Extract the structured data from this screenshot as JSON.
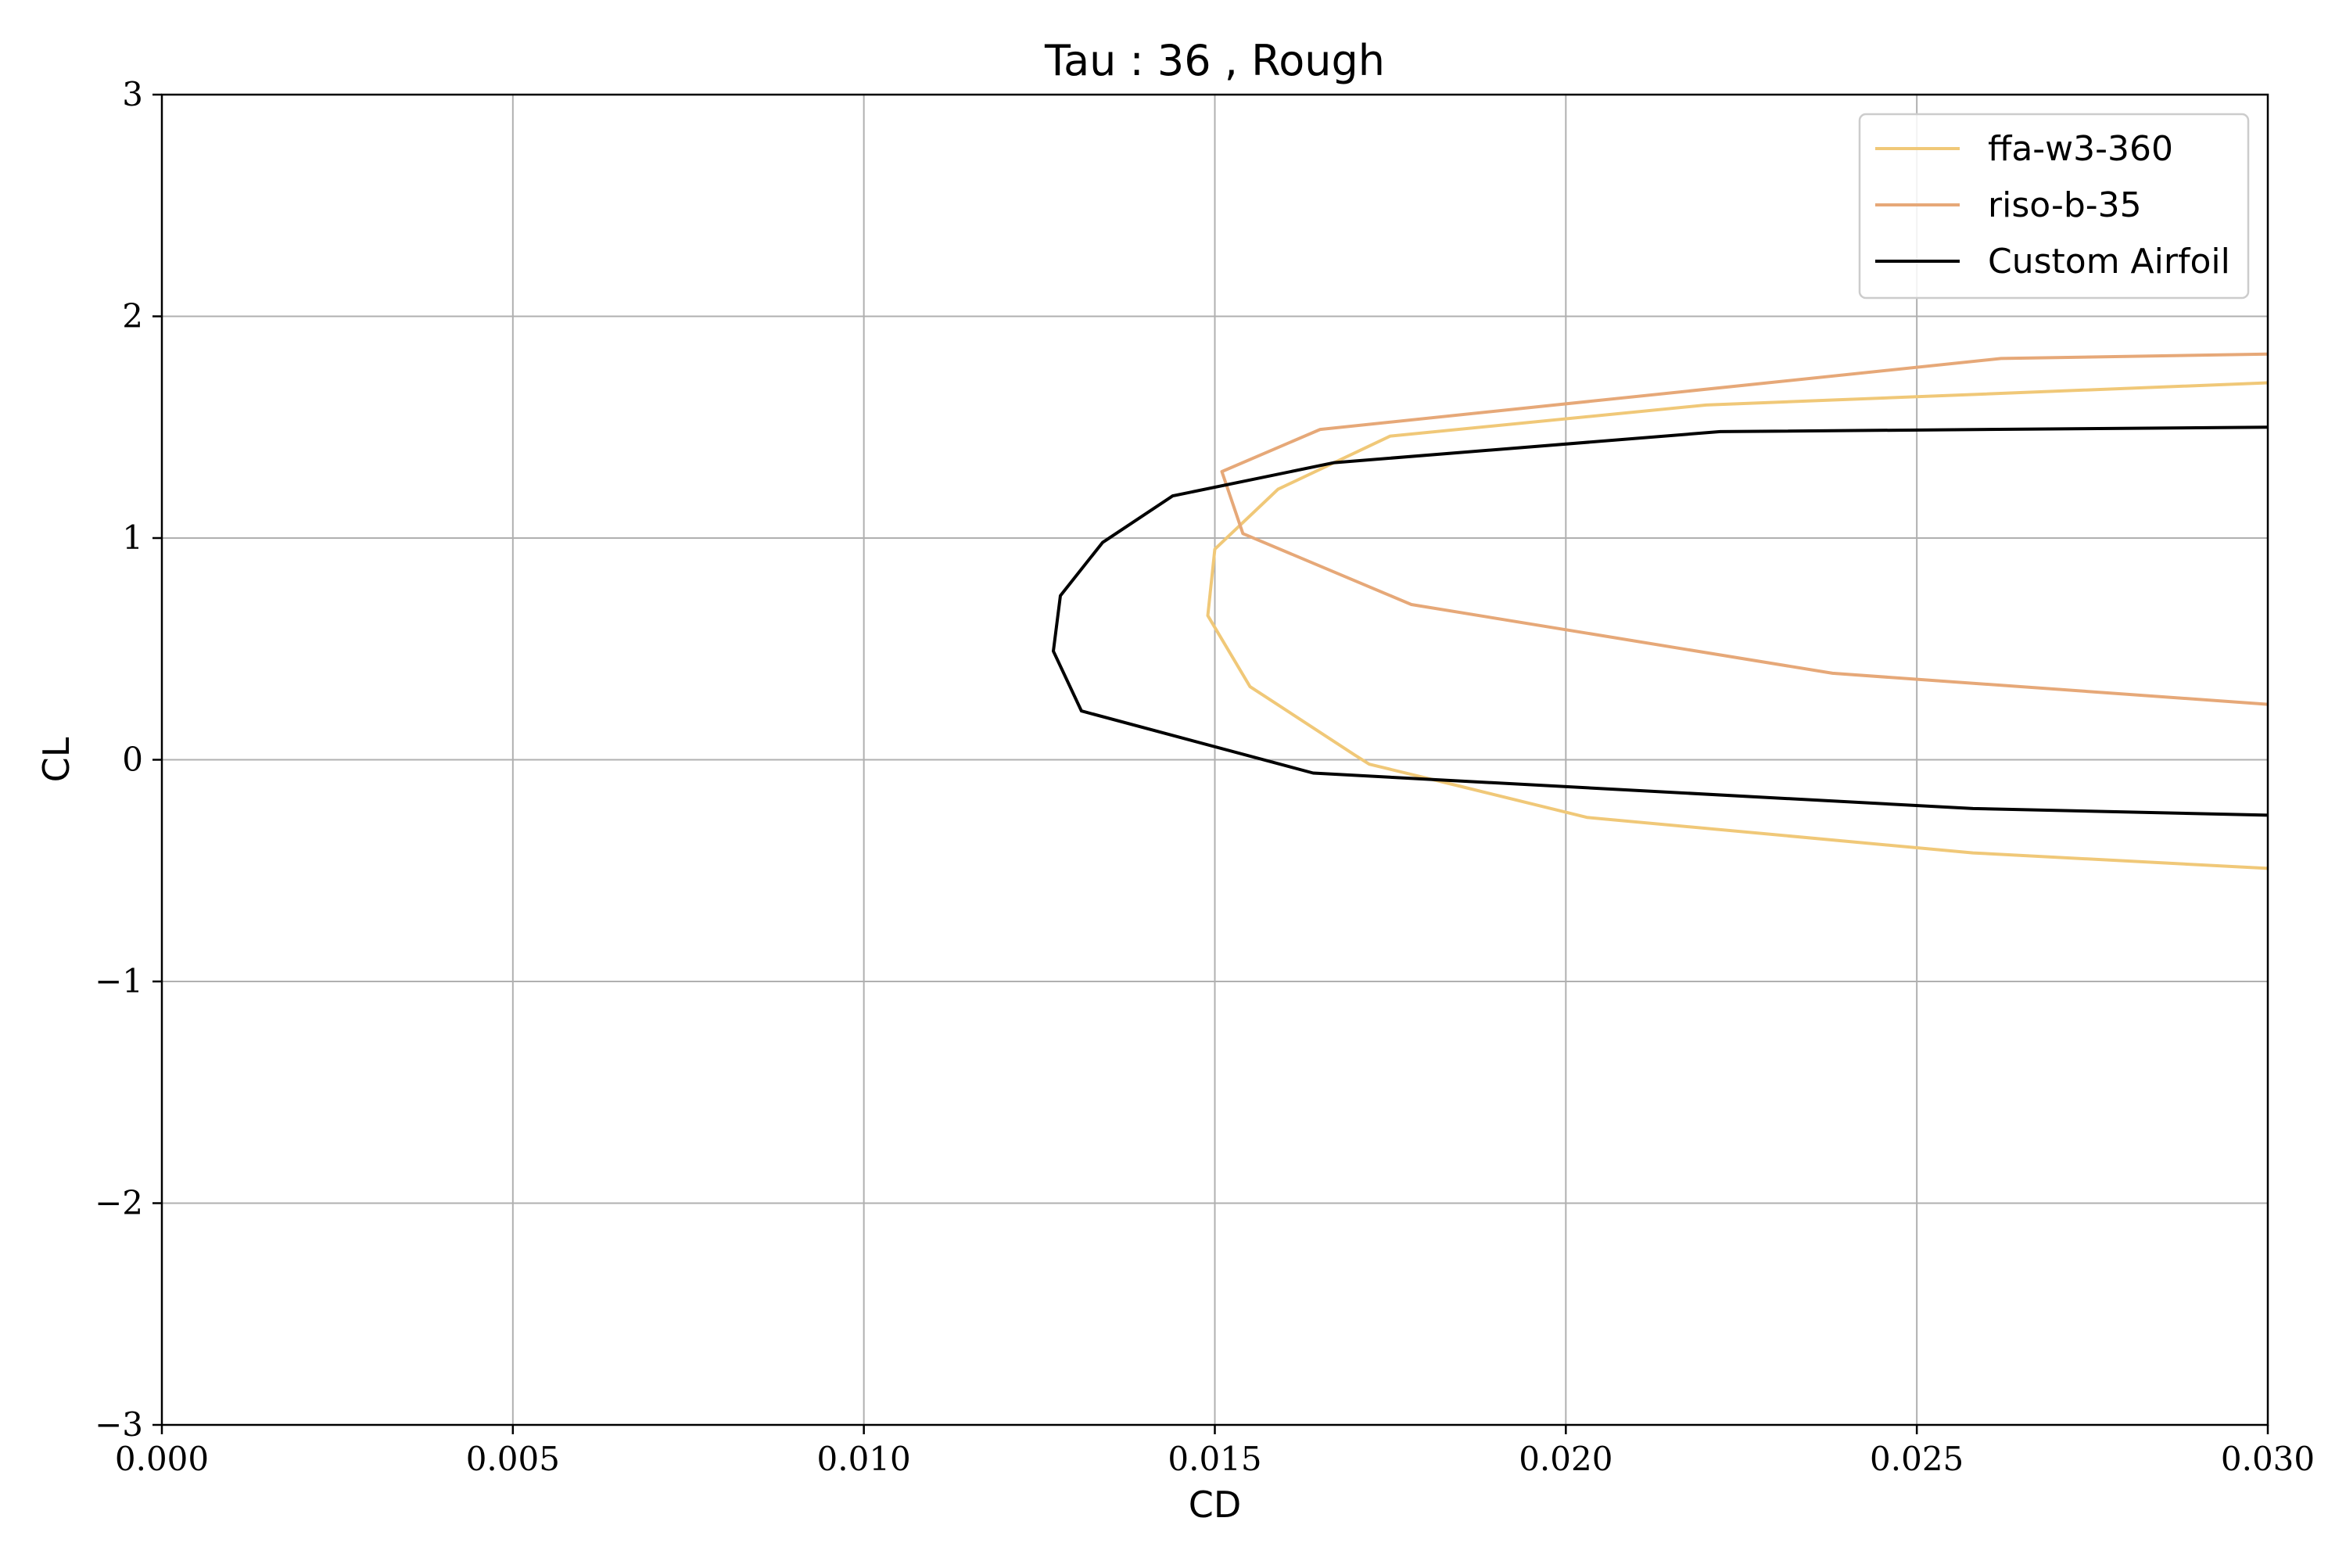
{
  "chart_data": {
    "type": "line",
    "title": "Tau : 36 , Rough",
    "xlabel": "CD",
    "ylabel": "CL",
    "xlim": [
      0.0,
      0.03
    ],
    "ylim": [
      -3,
      3
    ],
    "xticks": [
      0.0,
      0.005,
      0.01,
      0.015,
      0.02,
      0.025,
      0.03
    ],
    "xtick_labels": [
      "0.000",
      "0.005",
      "0.010",
      "0.015",
      "0.020",
      "0.025",
      "0.030"
    ],
    "yticks": [
      -3,
      -2,
      -1,
      0,
      1,
      2,
      3
    ],
    "ytick_labels": [
      "−3",
      "−2",
      "−1",
      "0",
      "1",
      "2",
      "3"
    ],
    "grid": true,
    "legend_position": "top-right",
    "series": [
      {
        "name": "ffa-w3-360",
        "color": "#f0c878",
        "x": [
          0.03,
          0.0258,
          0.0203,
          0.0185,
          0.0172,
          0.017,
          0.0155,
          0.0149,
          0.015,
          0.0159,
          0.0175,
          0.022,
          0.03
        ],
        "y": [
          -0.49,
          -0.42,
          -0.26,
          -0.12,
          -0.02,
          0.02,
          0.33,
          0.65,
          0.95,
          1.22,
          1.46,
          1.6,
          1.7
        ]
      },
      {
        "name": "riso-b-35",
        "color": "#e6a878",
        "x": [
          0.03,
          0.0238,
          0.0178,
          0.0154,
          0.0151,
          0.0165,
          0.0262,
          0.03
        ],
        "y": [
          0.25,
          0.39,
          0.7,
          1.02,
          1.3,
          1.49,
          1.81,
          1.83
        ]
      },
      {
        "name": "Custom Airfoil",
        "color": "#000000",
        "x": [
          0.03,
          0.0258,
          0.0164,
          0.0131,
          0.0127,
          0.0128,
          0.0134,
          0.0144,
          0.0167,
          0.0222,
          0.03
        ],
        "y": [
          -0.25,
          -0.22,
          -0.06,
          0.22,
          0.49,
          0.74,
          0.98,
          1.19,
          1.34,
          1.48,
          1.5
        ]
      }
    ]
  }
}
